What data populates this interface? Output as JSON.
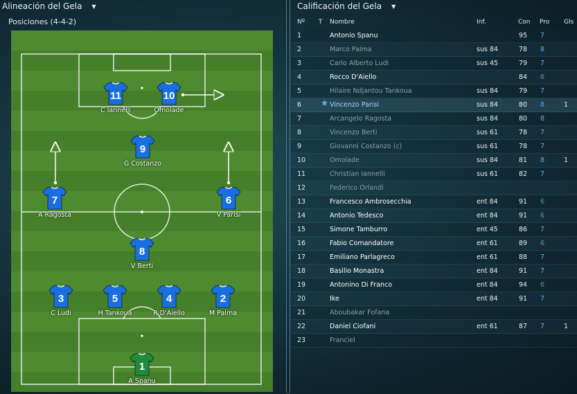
{
  "left_panel": {
    "title": "Alineación del Gela",
    "formation_label": "Posiciones (4-4-2)",
    "players": [
      {
        "number": "11",
        "name": "C Iannelli",
        "role": "outfield"
      },
      {
        "number": "10",
        "name": "Omolade",
        "role": "outfield"
      },
      {
        "number": "9",
        "name": "G Costanzo",
        "role": "outfield"
      },
      {
        "number": "7",
        "name": "A Ragosta",
        "role": "outfield"
      },
      {
        "number": "6",
        "name": "V Parisi",
        "role": "outfield"
      },
      {
        "number": "8",
        "name": "V Berti",
        "role": "outfield"
      },
      {
        "number": "3",
        "name": "C Ludi",
        "role": "outfield"
      },
      {
        "number": "5",
        "name": "H Tankoua",
        "role": "outfield"
      },
      {
        "number": "4",
        "name": "R D'Aiello",
        "role": "outfield"
      },
      {
        "number": "2",
        "name": "M Palma",
        "role": "outfield"
      },
      {
        "number": "1",
        "name": "A Spanu",
        "role": "goalkeeper"
      }
    ]
  },
  "right_panel": {
    "title": "Calificación del Gela",
    "columns": {
      "num": "Nº",
      "t": "T",
      "name": "Nombre",
      "inf": "Inf.",
      "con": "Con",
      "pro": "Pro",
      "gls": "Gls"
    },
    "rows": [
      {
        "num": "1",
        "name": "Antonio Spanu",
        "inf": "",
        "con": "95",
        "pro": "7",
        "gls": "",
        "dim": false,
        "star": false
      },
      {
        "num": "2",
        "name": "Marco Palma",
        "inf": "sus 84",
        "con": "78",
        "pro": "8",
        "gls": "",
        "dim": true,
        "star": false
      },
      {
        "num": "3",
        "name": "Carlo Alberto Ludi",
        "inf": "sus 45",
        "con": "79",
        "pro": "7",
        "gls": "",
        "dim": true,
        "star": false
      },
      {
        "num": "4",
        "name": "Rocco D'Aiello",
        "inf": "",
        "con": "84",
        "pro": "6",
        "gls": "",
        "dim": false,
        "star": false
      },
      {
        "num": "5",
        "name": "Hilaire Ndjantou Tankoua",
        "inf": "sus 84",
        "con": "79",
        "pro": "7",
        "gls": "",
        "dim": true,
        "star": false
      },
      {
        "num": "6",
        "name": "Vincenzo Parisi",
        "inf": "sus 84",
        "con": "80",
        "pro": "8",
        "gls": "1",
        "dim": false,
        "star": true
      },
      {
        "num": "7",
        "name": "Arcangelo Ragosta",
        "inf": "sus 84",
        "con": "80",
        "pro": "8",
        "gls": "",
        "dim": true,
        "star": false
      },
      {
        "num": "8",
        "name": "Vincenzo Berti",
        "inf": "sus 61",
        "con": "78",
        "pro": "7",
        "gls": "",
        "dim": true,
        "star": false
      },
      {
        "num": "9",
        "name": "Giovanni Costanzo (c)",
        "inf": "sus 61",
        "con": "78",
        "pro": "7",
        "gls": "",
        "dim": true,
        "star": false
      },
      {
        "num": "10",
        "name": "Omolade",
        "inf": "sus 84",
        "con": "81",
        "pro": "8",
        "gls": "1",
        "dim": true,
        "star": false
      },
      {
        "num": "11",
        "name": "Christian Iannelli",
        "inf": "sus 61",
        "con": "82",
        "pro": "7",
        "gls": "",
        "dim": true,
        "star": false
      },
      {
        "num": "12",
        "name": "Federico Orlandi",
        "inf": "",
        "con": "",
        "pro": "",
        "gls": "",
        "dim": true,
        "star": false
      },
      {
        "num": "13",
        "name": "Francesco Ambrosecchia",
        "inf": "ent 84",
        "con": "91",
        "pro": "6",
        "gls": "",
        "dim": false,
        "star": false
      },
      {
        "num": "14",
        "name": "Antonio Tedesco",
        "inf": "ent 84",
        "con": "91",
        "pro": "6",
        "gls": "",
        "dim": false,
        "star": false
      },
      {
        "num": "15",
        "name": "Simone Tamburro",
        "inf": "ent 45",
        "con": "86",
        "pro": "7",
        "gls": "",
        "dim": false,
        "star": false
      },
      {
        "num": "16",
        "name": "Fabio Comandatore",
        "inf": "ent 61",
        "con": "89",
        "pro": "6",
        "gls": "",
        "dim": false,
        "star": false
      },
      {
        "num": "17",
        "name": "Emiliano Parlagreco",
        "inf": "ent 61",
        "con": "88",
        "pro": "7",
        "gls": "",
        "dim": false,
        "star": false
      },
      {
        "num": "18",
        "name": "Basilio Monastra",
        "inf": "ent 84",
        "con": "91",
        "pro": "7",
        "gls": "",
        "dim": false,
        "star": false
      },
      {
        "num": "19",
        "name": "Antonino Di Franco",
        "inf": "ent 84",
        "con": "94",
        "pro": "6",
        "gls": "",
        "dim": false,
        "star": false
      },
      {
        "num": "20",
        "name": "Ike",
        "inf": "ent 84",
        "con": "91",
        "pro": "7",
        "gls": "",
        "dim": false,
        "star": false
      },
      {
        "num": "21",
        "name": "Aboubakar Fofana",
        "inf": "",
        "con": "",
        "pro": "",
        "gls": "",
        "dim": true,
        "star": false
      },
      {
        "num": "22",
        "name": "Daniel Ciofani",
        "inf": "ent 61",
        "con": "87",
        "pro": "7",
        "gls": "1",
        "dim": false,
        "star": false
      },
      {
        "num": "23",
        "name": "Franciel",
        "inf": "",
        "con": "",
        "pro": "",
        "gls": "",
        "dim": true,
        "star": false
      }
    ]
  },
  "colors": {
    "shirt_outfield": "#1a6fe0",
    "shirt_goalkeeper": "#1f8a3a",
    "pitch_light": "#4d8a30",
    "pitch_dark": "#457f2a",
    "pro_high": "#63aee6",
    "pro_low": "#4f9aa6"
  },
  "icons": {
    "dropdown": "chevron-down-icon",
    "star": "star-icon",
    "movement_arrow": "arrow-icon"
  }
}
